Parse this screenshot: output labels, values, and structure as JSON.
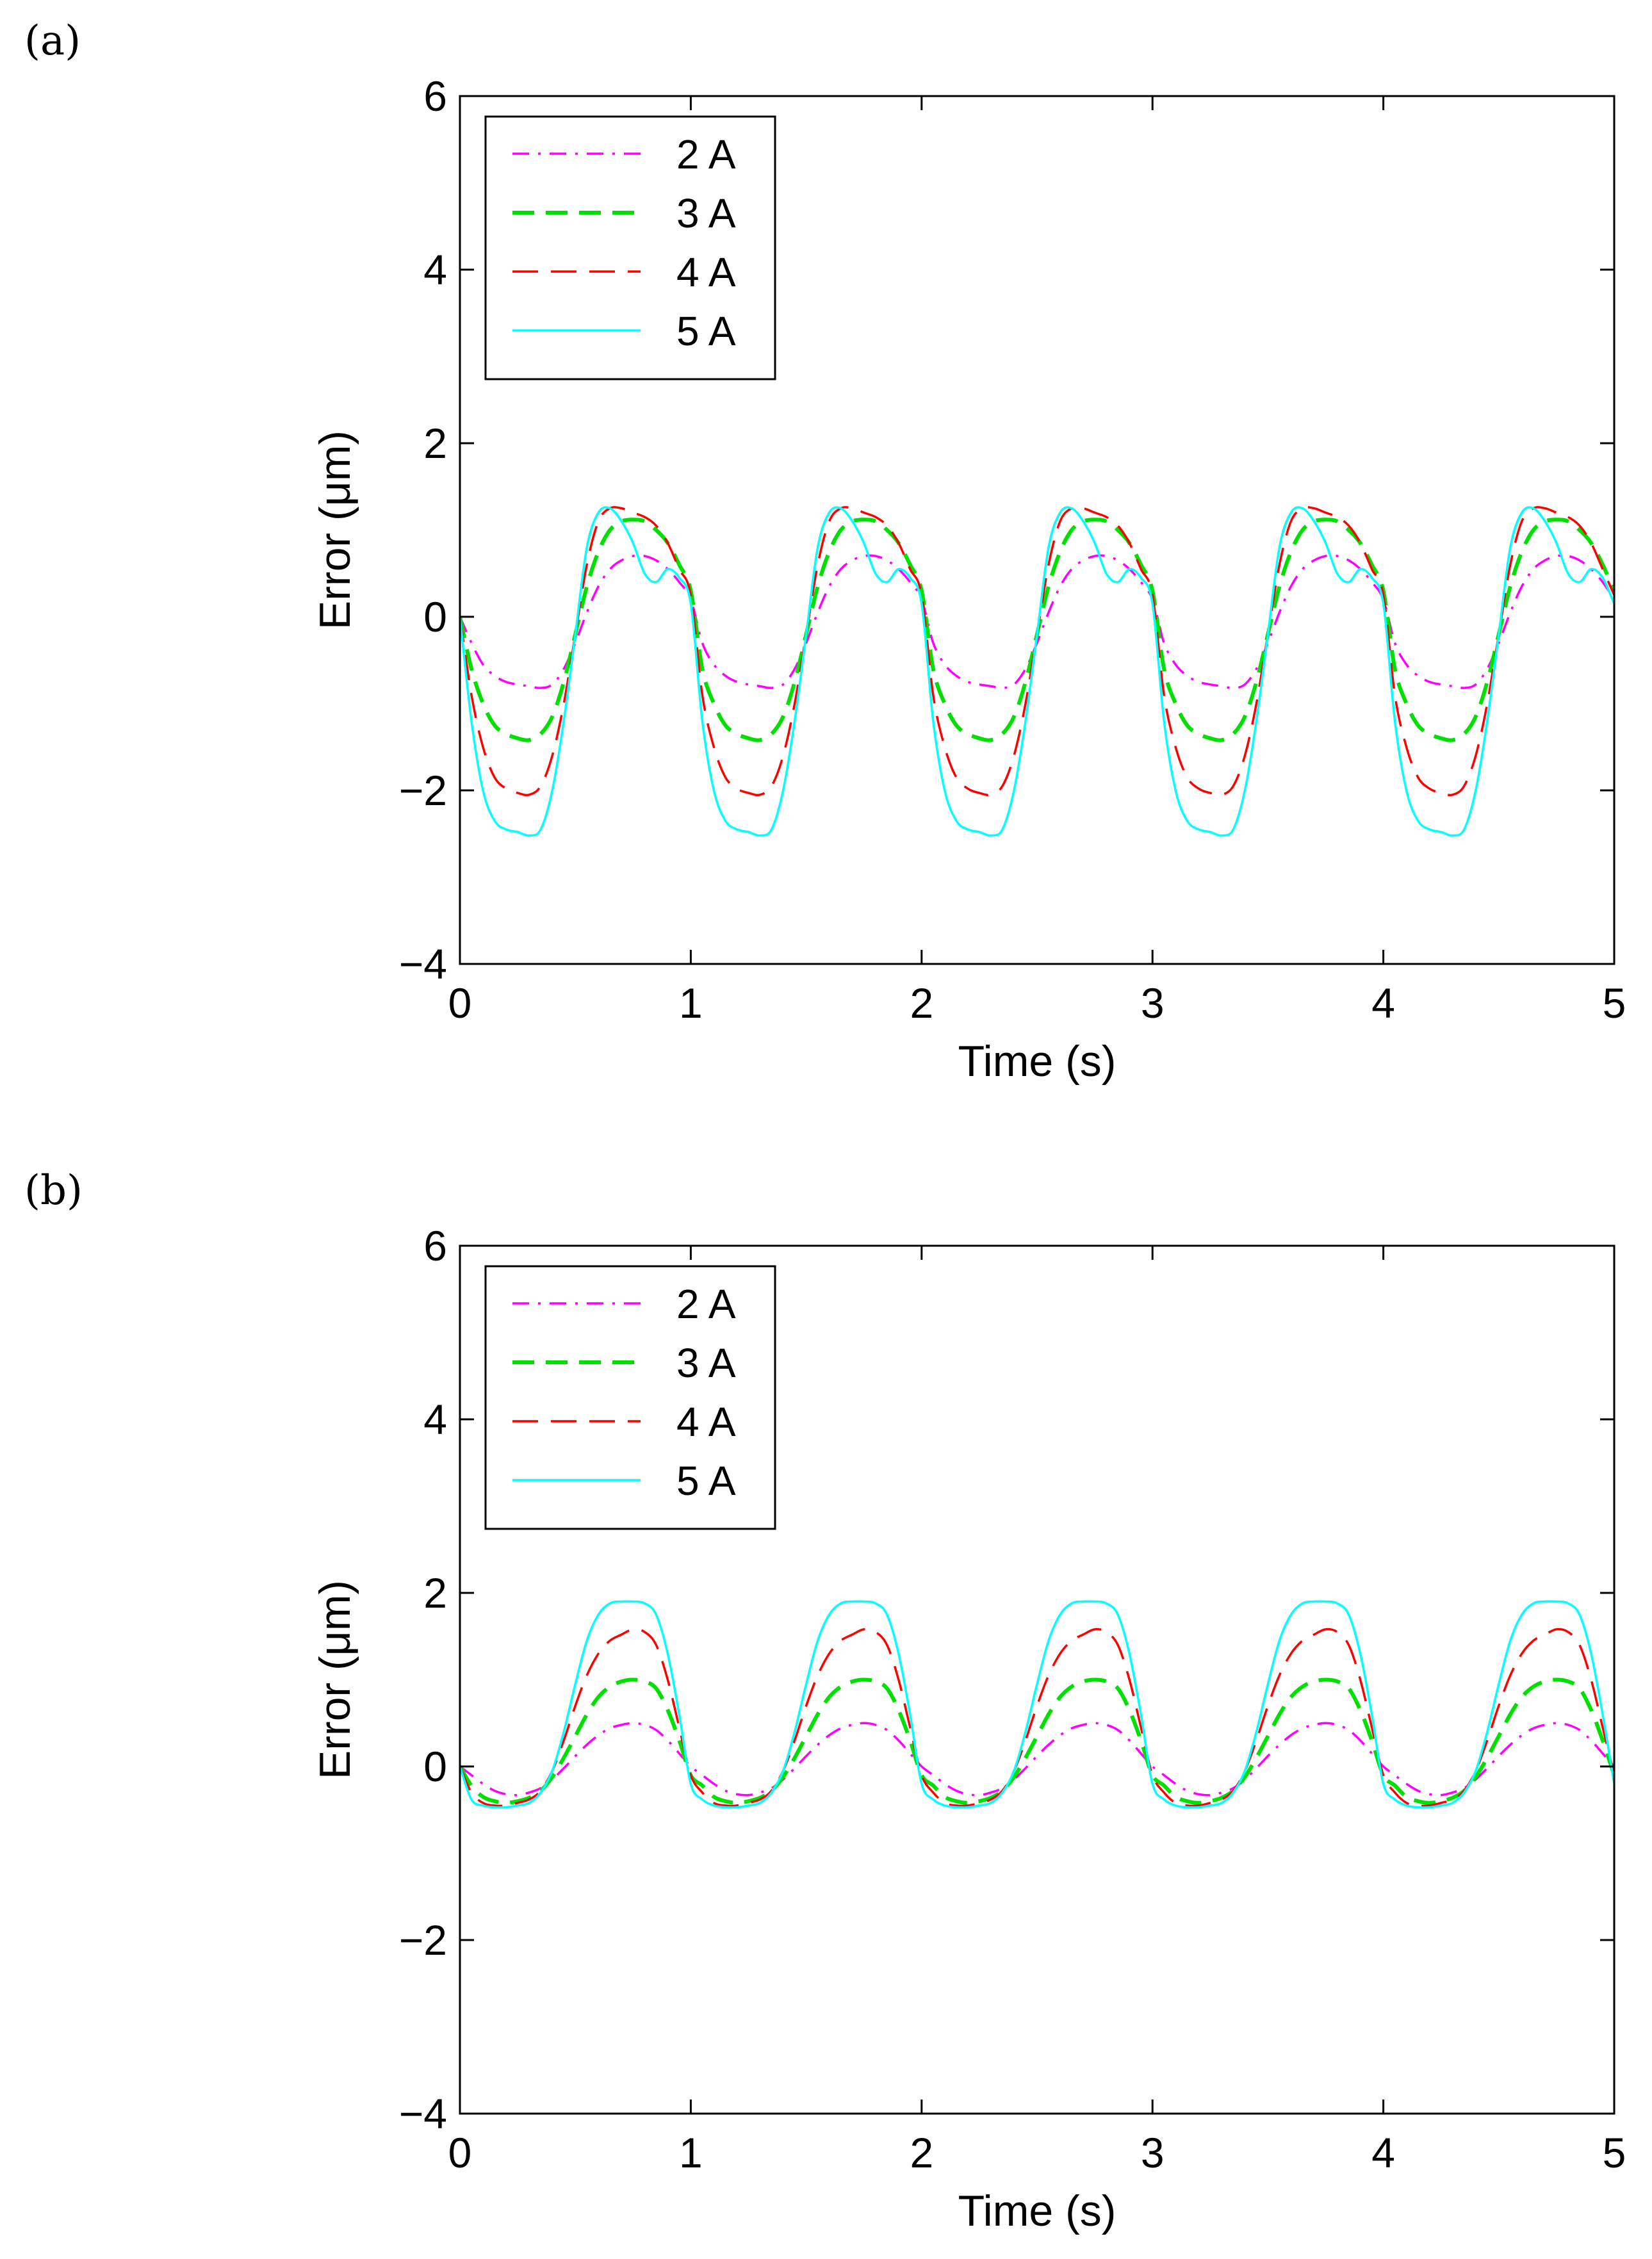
{
  "chart_data": [
    {
      "type": "line",
      "panel_label": "(a)",
      "xlabel": "Time (s)",
      "ylabel": "Error (μm)",
      "xlim": [
        0,
        5
      ],
      "ylim": [
        -4,
        6
      ],
      "xticks": [
        "0",
        "1",
        "2",
        "3",
        "4",
        "5"
      ],
      "yticks": [
        "−4",
        "−2",
        "0",
        "2",
        "4",
        "6"
      ],
      "grid": false,
      "legend_position": "top-left",
      "series": [
        {
          "name": "2 A",
          "color": "#ff00ff",
          "style": "dashdot",
          "x": [
            0,
            0.05,
            0.1,
            0.15,
            0.2,
            0.25,
            0.3,
            0.35,
            0.4,
            0.45,
            0.5,
            0.55,
            0.6,
            0.65,
            0.7,
            0.75,
            0.8,
            0.85,
            0.9,
            0.95,
            1.0
          ],
          "y": [
            0,
            -0.3,
            -0.55,
            -0.68,
            -0.75,
            -0.78,
            -0.8,
            -0.82,
            -0.78,
            -0.6,
            -0.3,
            0.05,
            0.35,
            0.55,
            0.65,
            0.7,
            0.7,
            0.65,
            0.55,
            0.4,
            0.2
          ]
        },
        {
          "name": "3 A",
          "color": "#00e000",
          "style": "dashed",
          "x": [
            0,
            0.05,
            0.1,
            0.15,
            0.2,
            0.25,
            0.3,
            0.35,
            0.4,
            0.45,
            0.5,
            0.55,
            0.6,
            0.65,
            0.7,
            0.75,
            0.8,
            0.85,
            0.9,
            0.95,
            1.0
          ],
          "y": [
            0,
            -0.6,
            -1.0,
            -1.25,
            -1.35,
            -1.4,
            -1.42,
            -1.35,
            -1.15,
            -0.75,
            -0.2,
            0.35,
            0.75,
            1.0,
            1.1,
            1.12,
            1.1,
            1.0,
            0.85,
            0.6,
            0.3
          ]
        },
        {
          "name": "4 A",
          "color": "#ff0000",
          "style": "longdash",
          "x": [
            0,
            0.05,
            0.1,
            0.15,
            0.2,
            0.25,
            0.3,
            0.35,
            0.4,
            0.45,
            0.5,
            0.55,
            0.6,
            0.65,
            0.7,
            0.75,
            0.8,
            0.85,
            0.9,
            0.95,
            1.0
          ],
          "y": [
            0,
            -0.9,
            -1.5,
            -1.85,
            -1.98,
            -2.03,
            -2.05,
            -1.95,
            -1.6,
            -1.0,
            -0.2,
            0.6,
            1.1,
            1.25,
            1.25,
            1.2,
            1.15,
            1.05,
            0.85,
            0.55,
            0.25
          ]
        },
        {
          "name": "5 A",
          "color": "#00ffff",
          "style": "solid",
          "x": [
            0,
            0.05,
            0.1,
            0.15,
            0.2,
            0.25,
            0.3,
            0.35,
            0.4,
            0.45,
            0.5,
            0.55,
            0.6,
            0.65,
            0.7,
            0.75,
            0.8,
            0.85,
            0.9,
            0.95,
            1.0
          ],
          "y": [
            0,
            -1.2,
            -2.0,
            -2.35,
            -2.45,
            -2.48,
            -2.52,
            -2.45,
            -2.0,
            -1.2,
            -0.2,
            0.8,
            1.2,
            1.25,
            1.1,
            0.85,
            0.5,
            0.4,
            0.55,
            0.45,
            0.15
          ]
        }
      ]
    },
    {
      "type": "line",
      "panel_label": "(b)",
      "xlabel": "Time (s)",
      "ylabel": "Error (μm)",
      "xlim": [
        0,
        5
      ],
      "ylim": [
        -4,
        6
      ],
      "xticks": [
        "0",
        "1",
        "2",
        "3",
        "4",
        "5"
      ],
      "yticks": [
        "−4",
        "−2",
        "0",
        "2",
        "4",
        "6"
      ],
      "grid": false,
      "legend_position": "top-left",
      "series": [
        {
          "name": "2 A",
          "color": "#ff00ff",
          "style": "dashdot",
          "x": [
            0,
            0.05,
            0.1,
            0.15,
            0.2,
            0.25,
            0.3,
            0.35,
            0.4,
            0.45,
            0.5,
            0.55,
            0.6,
            0.65,
            0.7,
            0.75,
            0.8,
            0.85,
            0.9,
            0.95,
            1.0
          ],
          "y": [
            0,
            -0.1,
            -0.2,
            -0.28,
            -0.32,
            -0.33,
            -0.3,
            -0.25,
            -0.15,
            -0.02,
            0.12,
            0.25,
            0.36,
            0.44,
            0.48,
            0.5,
            0.48,
            0.42,
            0.3,
            0.15,
            0.0
          ]
        },
        {
          "name": "3 A",
          "color": "#00e000",
          "style": "dashed",
          "x": [
            0,
            0.05,
            0.1,
            0.15,
            0.2,
            0.25,
            0.3,
            0.35,
            0.4,
            0.45,
            0.5,
            0.55,
            0.6,
            0.65,
            0.7,
            0.75,
            0.8,
            0.85,
            0.9,
            0.95,
            1.0
          ],
          "y": [
            0,
            -0.22,
            -0.35,
            -0.4,
            -0.42,
            -0.4,
            -0.36,
            -0.28,
            -0.12,
            0.1,
            0.35,
            0.6,
            0.8,
            0.92,
            0.98,
            1.0,
            0.98,
            0.9,
            0.65,
            0.3,
            -0.1
          ]
        },
        {
          "name": "4 A",
          "color": "#ff0000",
          "style": "longdash",
          "x": [
            0,
            0.05,
            0.1,
            0.15,
            0.2,
            0.25,
            0.3,
            0.35,
            0.4,
            0.45,
            0.5,
            0.55,
            0.6,
            0.65,
            0.7,
            0.75,
            0.8,
            0.85,
            0.9,
            0.95,
            1.0
          ],
          "y": [
            0,
            -0.3,
            -0.42,
            -0.45,
            -0.45,
            -0.42,
            -0.38,
            -0.28,
            -0.05,
            0.3,
            0.7,
            1.05,
            1.3,
            1.45,
            1.52,
            1.58,
            1.55,
            1.4,
            1.0,
            0.45,
            -0.1
          ]
        },
        {
          "name": "5 A",
          "color": "#00ffff",
          "style": "solid",
          "x": [
            0,
            0.05,
            0.1,
            0.15,
            0.2,
            0.25,
            0.3,
            0.35,
            0.4,
            0.45,
            0.5,
            0.55,
            0.6,
            0.65,
            0.7,
            0.75,
            0.8,
            0.85,
            0.9,
            0.95,
            1.0
          ],
          "y": [
            0,
            -0.38,
            -0.45,
            -0.47,
            -0.47,
            -0.45,
            -0.42,
            -0.3,
            -0.05,
            0.4,
            0.95,
            1.45,
            1.75,
            1.88,
            1.9,
            1.9,
            1.88,
            1.75,
            1.3,
            0.6,
            -0.2
          ]
        }
      ]
    }
  ]
}
